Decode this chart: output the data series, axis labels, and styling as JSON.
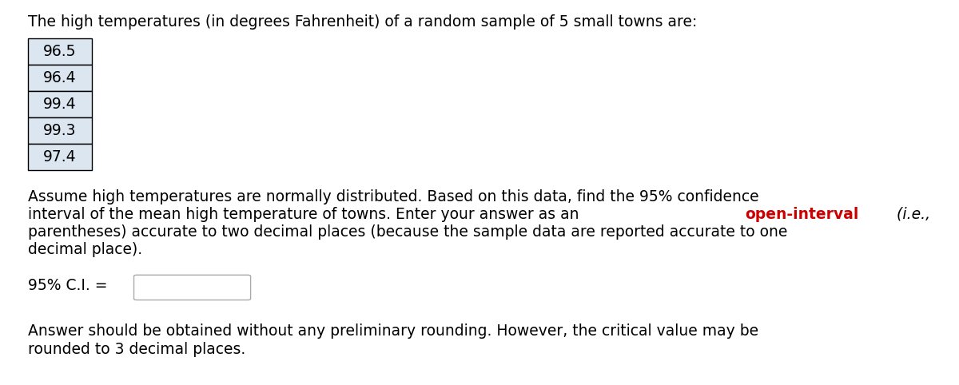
{
  "title_line": "The high temperatures (in degrees Fahrenheit) of a random sample of 5 small towns are:",
  "temperatures": [
    "96.5",
    "96.4",
    "99.4",
    "99.3",
    "97.4"
  ],
  "line1": "Assume high temperatures are normally distributed. Based on this data, find the 95% confidence",
  "line2_pre": "interval of the mean high temperature of towns. Enter your answer as an ",
  "line2_red": "open-interval",
  "line2_italic": " (i.e.,",
  "line3": "parentheses) accurate to two decimal places (because the sample data are reported accurate to one",
  "line4": "decimal place).",
  "ci_label": "95% C.I. = ",
  "footer1": "Answer should be obtained without any preliminary rounding. However, the critical value may be",
  "footer2": "rounded to 3 decimal places.",
  "background_color": "#ffffff",
  "text_color": "#000000",
  "red_color": "#cc0000",
  "table_bg": "#dce6f1",
  "table_border": "#000000",
  "font_size": 13.5
}
